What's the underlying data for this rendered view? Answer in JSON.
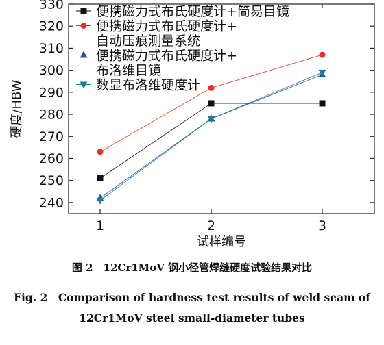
{
  "chart_data": {
    "type": "line",
    "title": "",
    "xlabel": "试样编号",
    "ylabel": "硬度/HBW",
    "categories": [
      "1",
      "2",
      "3"
    ],
    "ylim": [
      235,
      330
    ],
    "yticks": [
      240,
      250,
      260,
      270,
      280,
      290,
      300,
      310,
      320,
      330
    ],
    "legend_placement": "top-left",
    "series": [
      {
        "name_lines": [
          "便携磁力式布氏硬度计+简易目镜"
        ],
        "values": [
          251,
          285,
          285
        ],
        "color": "#111111",
        "marker": "square"
      },
      {
        "name_lines": [
          "便携磁力式布氏硬度计+",
          "自动压痕测量系统"
        ],
        "values": [
          263,
          292,
          307
        ],
        "color": "#e8312a",
        "marker": "circle"
      },
      {
        "name_lines": [
          "便携磁力式布氏硬度计+",
          "布洛维目镜"
        ],
        "values": [
          242,
          278,
          298
        ],
        "color": "#2b4fa8",
        "marker": "triangle-up"
      },
      {
        "name_lines": [
          "数显布洛维硬度计"
        ],
        "values": [
          241,
          278,
          299
        ],
        "color": "#1f7f86",
        "marker": "triangle-down"
      }
    ]
  },
  "captions": {
    "zh": "图 2　12Cr1MoV 钢小径管焊缝硬度试验结果对比",
    "en_line1": "Fig. 2　Comparison of hardness test results of weld seam of",
    "en_line2": "12Cr1MoV steel small-diameter tubes"
  }
}
